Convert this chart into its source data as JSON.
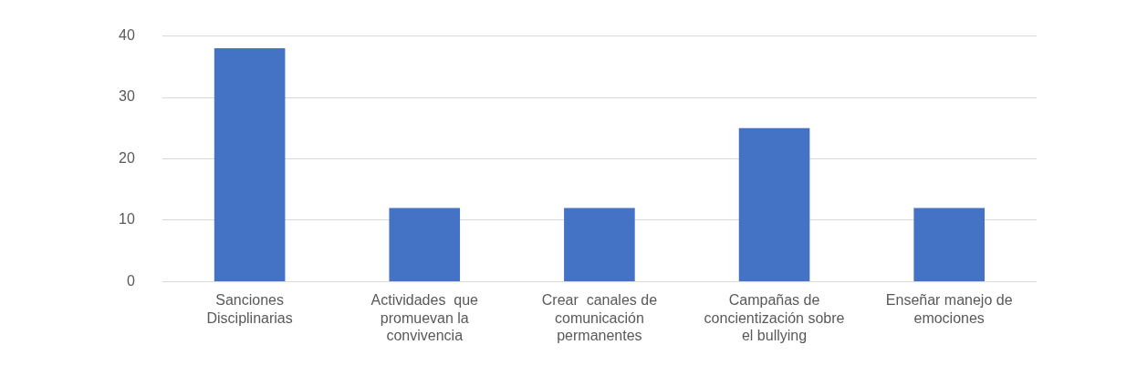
{
  "chart_data": {
    "type": "bar",
    "categories": [
      "Sanciones Disciplinarias",
      "Actividades  que promuevan la convivencia",
      "Crear  canales de comunicación permanentes",
      "Campañas de concientización sobre el bullying",
      "Enseñar manejo de emociones"
    ],
    "values": [
      38,
      12,
      12,
      25,
      12
    ],
    "color": "#4472c4",
    "ylim": [
      0,
      40
    ],
    "yticks": [
      0,
      10,
      20,
      30,
      40
    ],
    "grid": "y",
    "legend": false
  }
}
